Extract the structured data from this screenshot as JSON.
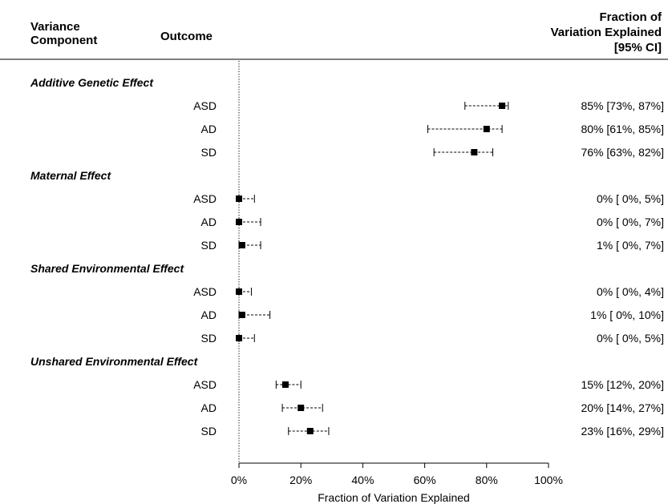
{
  "header": {
    "col1_line1": "Variance",
    "col1_line2": "Component",
    "col2": "Outcome",
    "col3_line1": "Fraction of",
    "col3_line2": "Variation Explained",
    "col3_line3": "[95% CI]"
  },
  "chart_data": {
    "type": "forest",
    "xlabel": "Fraction of Variation Explained",
    "xlim": [
      0,
      100
    ],
    "xticks": [
      0,
      20,
      40,
      60,
      80,
      100
    ],
    "xtick_labels": [
      "0%",
      "20%",
      "40%",
      "60%",
      "80%",
      "100%"
    ],
    "reference_line": 0,
    "groups": [
      {
        "name": "Additive Genetic Effect",
        "rows": [
          {
            "outcome": "ASD",
            "estimate": 85,
            "lower": 73,
            "upper": 87,
            "label": "85% [73%, 87%]"
          },
          {
            "outcome": "AD",
            "estimate": 80,
            "lower": 61,
            "upper": 85,
            "label": "80% [61%, 85%]"
          },
          {
            "outcome": "SD",
            "estimate": 76,
            "lower": 63,
            "upper": 82,
            "label": "76% [63%, 82%]"
          }
        ]
      },
      {
        "name": "Maternal Effect",
        "rows": [
          {
            "outcome": "ASD",
            "estimate": 0,
            "lower": 0,
            "upper": 5,
            "label": "0% [ 0%,  5%]"
          },
          {
            "outcome": "AD",
            "estimate": 0,
            "lower": 0,
            "upper": 7,
            "label": "0% [ 0%,  7%]"
          },
          {
            "outcome": "SD",
            "estimate": 1,
            "lower": 0,
            "upper": 7,
            "label": "1% [ 0%,  7%]"
          }
        ]
      },
      {
        "name": "Shared Environmental Effect",
        "rows": [
          {
            "outcome": "ASD",
            "estimate": 0,
            "lower": 0,
            "upper": 4,
            "label": "0% [ 0%,  4%]"
          },
          {
            "outcome": "AD",
            "estimate": 1,
            "lower": 0,
            "upper": 10,
            "label": "1% [ 0%, 10%]"
          },
          {
            "outcome": "SD",
            "estimate": 0,
            "lower": 0,
            "upper": 5,
            "label": "0% [ 0%,  5%]"
          }
        ]
      },
      {
        "name": "Unshared Environmental Effect",
        "rows": [
          {
            "outcome": "ASD",
            "estimate": 15,
            "lower": 12,
            "upper": 20,
            "label": "15% [12%, 20%]"
          },
          {
            "outcome": "AD",
            "estimate": 20,
            "lower": 14,
            "upper": 27,
            "label": "20% [14%, 27%]"
          },
          {
            "outcome": "SD",
            "estimate": 23,
            "lower": 16,
            "upper": 29,
            "label": "23% [16%, 29%]"
          }
        ]
      }
    ]
  }
}
